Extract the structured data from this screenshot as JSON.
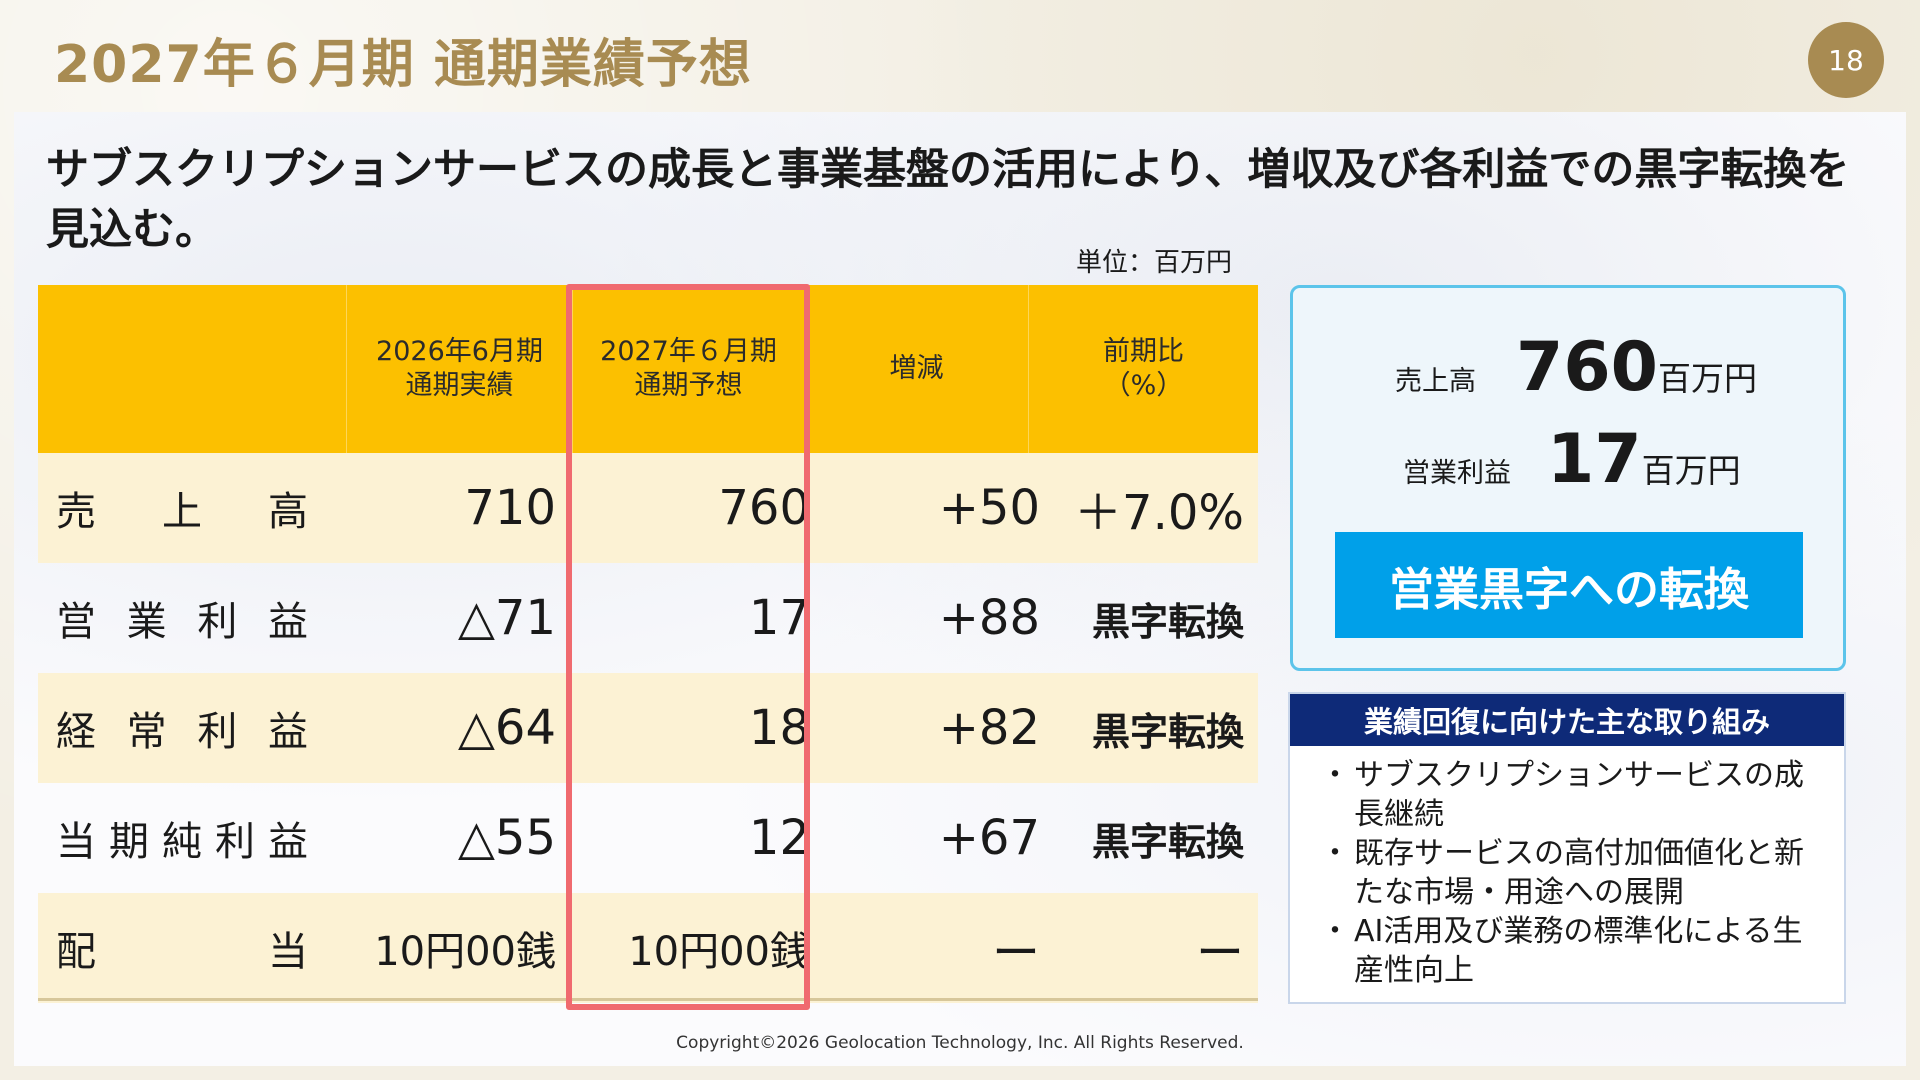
{
  "title": "2027年６月期 通期業績予想",
  "page_number": "18",
  "headline": "サブスクリプションサービスの成長と事業基盤の活用により、増収及び各利益での黒字転換を見込む。",
  "unit": "単位：百万円",
  "table": {
    "headers": [
      "",
      "2026年6月期\n通期実績",
      "2027年６月期\n通期予想",
      "増減",
      "前期比\n（%）"
    ],
    "rows": [
      {
        "label": [
          "売",
          "上",
          "高"
        ],
        "fy2026": "710",
        "fy2027": "760",
        "change": "+50",
        "ratio": "＋7.0%"
      },
      {
        "label": [
          "営",
          "業",
          "利",
          "益"
        ],
        "fy2026": "△71",
        "fy2027": "17",
        "change": "+88",
        "ratio": "黒字転換"
      },
      {
        "label": [
          "経",
          "常",
          "利",
          "益"
        ],
        "fy2026": "△64",
        "fy2027": "18",
        "change": "+82",
        "ratio": "黒字転換"
      },
      {
        "label": [
          "当",
          "期",
          "純",
          "利",
          "益"
        ],
        "fy2026": "△55",
        "fy2027": "12",
        "change": "+67",
        "ratio": "黒字転換"
      },
      {
        "label": [
          "配",
          "当"
        ],
        "fy2026": "10円00銭",
        "fy2027": "10円00銭",
        "change": "ー",
        "ratio": "ー"
      }
    ]
  },
  "summary": {
    "sales_label": "売上高",
    "sales_value": "760",
    "sales_unit": "百万円",
    "op_label": "営業利益",
    "op_value": "17",
    "op_unit": "百万円",
    "badge": "営業黒字への転換"
  },
  "initiatives": {
    "title": "業績回復に向けた主な取り組み",
    "items": [
      "サブスクリプションサービスの成長継続",
      "既存サービスの高付加価値化と新たな市場・用途への展開",
      "AI活用及び業務の標準化による生産性向上"
    ]
  },
  "colors": {
    "title": "#a88b52",
    "header": "#fcc000",
    "row_shade": "#fcf2d4",
    "negative": "#e60012",
    "highlight_border": "#f06a6f",
    "badge": "#00a0e9",
    "init_head": "#0e2a78"
  },
  "copyright": "Copyright©2026 Geolocation Technology, Inc. All Rights Reserved."
}
